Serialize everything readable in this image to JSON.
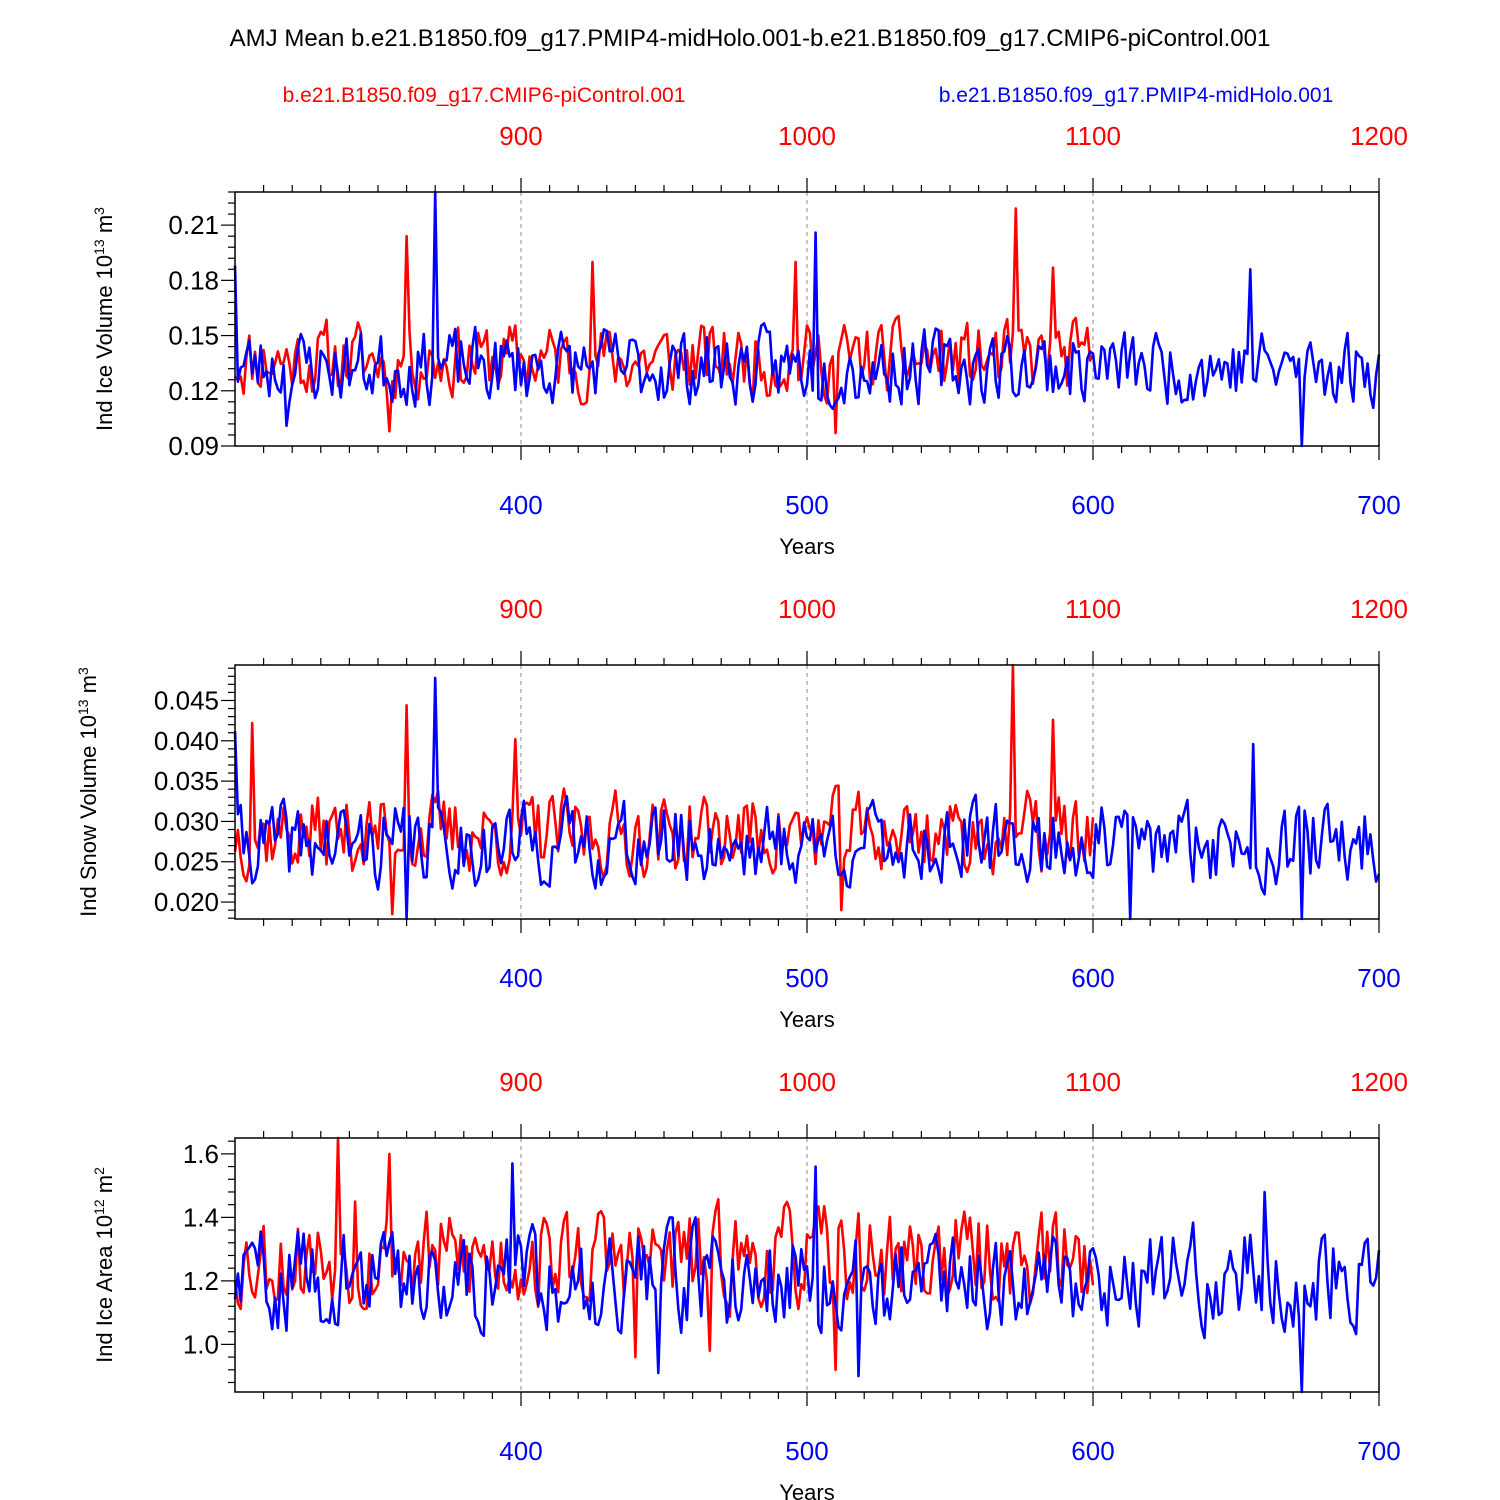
{
  "title": "AMJ Mean b.e21.B1850.f09_g17.PMIP4-midHolo.001-b.e21.B1850.f09_g17.CMIP6-piControl.001",
  "legend": {
    "red_label": "b.e21.B1850.f09_g17.CMIP6-piControl.001",
    "blue_label": "b.e21.B1850.f09_g17.PMIP4-midHolo.001"
  },
  "colors": {
    "red": "#ff0000",
    "blue": "#0000ff",
    "axis": "#000000"
  },
  "chart_data": [
    {
      "type": "line",
      "ylabel": "Ind Ice Volume 10",
      "yexp": "13",
      "yunit": " m",
      "yunit_exp": "3",
      "xlabel": "Years",
      "ylim": [
        0.09,
        0.228
      ],
      "yticks": [
        "0.09",
        "0.12",
        "0.15",
        "0.18",
        "0.21"
      ],
      "bottom_axis": {
        "range": [
          300,
          700
        ],
        "ticks": [
          "400",
          "500",
          "600",
          "700"
        ]
      },
      "top_axis": {
        "range": [
          800,
          1200
        ],
        "ticks": [
          "900",
          "1000",
          "1100",
          "1200"
        ]
      },
      "series": [
        {
          "name": "b.e21.B1850.f09_g17.CMIP6-piControl.001",
          "color": "red",
          "x_start": 800,
          "x_end": 1100,
          "base": 0.137,
          "amp": 0.018,
          "seed": 11,
          "spikes": [
            [
              860,
              0.204
            ],
            [
              925,
              0.19
            ],
            [
              996,
              0.19
            ],
            [
              1073,
              0.219
            ],
            [
              1086,
              0.187
            ],
            [
              854,
              0.098
            ],
            [
              1010,
              0.097
            ]
          ]
        },
        {
          "name": "b.e21.B1850.f09_g17.PMIP4-midHolo.001",
          "color": "blue",
          "x_start": 300,
          "x_end": 700,
          "base": 0.133,
          "amp": 0.018,
          "seed": 23,
          "spikes": [
            [
              370,
              0.228
            ],
            [
              503,
              0.206
            ],
            [
              655,
              0.186
            ],
            [
              300,
              0.188
            ],
            [
              673,
              0.09
            ],
            [
              318,
              0.101
            ]
          ]
        }
      ]
    },
    {
      "type": "line",
      "ylabel": "Ind Snow Volume 10",
      "yexp": "13",
      "yunit": " m",
      "yunit_exp": "3",
      "xlabel": "Years",
      "ylim": [
        0.0179,
        0.0494
      ],
      "yticks": [
        "0.020",
        "0.025",
        "0.030",
        "0.035",
        "0.040",
        "0.045"
      ],
      "bottom_axis": {
        "range": [
          300,
          700
        ],
        "ticks": [
          "400",
          "500",
          "600",
          "700"
        ]
      },
      "top_axis": {
        "range": [
          800,
          1200
        ],
        "ticks": [
          "900",
          "1000",
          "1100",
          "1200"
        ]
      },
      "series": [
        {
          "name": "b.e21.B1850.f09_g17.CMIP6-piControl.001",
          "color": "red",
          "x_start": 800,
          "x_end": 1100,
          "base": 0.0285,
          "amp": 0.0045,
          "seed": 37,
          "spikes": [
            [
              806,
              0.0422
            ],
            [
              860,
              0.0444
            ],
            [
              898,
              0.0402
            ],
            [
              1072,
              0.0494
            ],
            [
              1086,
              0.0426
            ],
            [
              855,
              0.0185
            ],
            [
              1012,
              0.019
            ]
          ]
        },
        {
          "name": "b.e21.B1850.f09_g17.PMIP4-midHolo.001",
          "color": "blue",
          "x_start": 300,
          "x_end": 700,
          "base": 0.0272,
          "amp": 0.0045,
          "seed": 41,
          "spikes": [
            [
              300,
              0.0412
            ],
            [
              370,
              0.0478
            ],
            [
              656,
              0.0396
            ],
            [
              613,
              0.0179
            ],
            [
              360,
              0.0179
            ],
            [
              673,
              0.0179
            ]
          ]
        }
      ]
    },
    {
      "type": "line",
      "ylabel": "Ind Ice Area 10",
      "yexp": "12",
      "yunit": " m",
      "yunit_exp": "2",
      "xlabel": "Years",
      "ylim": [
        0.85,
        1.65
      ],
      "yticks": [
        "1.0",
        "1.2",
        "1.4",
        "1.6"
      ],
      "bottom_axis": {
        "range": [
          300,
          700
        ],
        "ticks": [
          "400",
          "500",
          "600",
          "700"
        ]
      },
      "top_axis": {
        "range": [
          800,
          1200
        ],
        "ticks": [
          "900",
          "1000",
          "1100",
          "1200"
        ]
      },
      "series": [
        {
          "name": "b.e21.B1850.f09_g17.CMIP6-piControl.001",
          "color": "red",
          "x_start": 800,
          "x_end": 1100,
          "base": 1.27,
          "amp": 0.14,
          "seed": 53,
          "spikes": [
            [
              836,
              1.65
            ],
            [
              854,
              1.6
            ],
            [
              842,
              1.45
            ],
            [
              940,
              0.96
            ],
            [
              1010,
              0.92
            ],
            [
              966,
              0.98
            ]
          ]
        },
        {
          "name": "b.e21.B1850.f09_g17.PMIP4-midHolo.001",
          "color": "blue",
          "x_start": 300,
          "x_end": 700,
          "base": 1.21,
          "amp": 0.14,
          "seed": 59,
          "spikes": [
            [
              397,
              1.57
            ],
            [
              503,
              1.56
            ],
            [
              660,
              1.48
            ],
            [
              448,
              0.91
            ],
            [
              518,
              0.9
            ],
            [
              673,
              0.85
            ]
          ]
        }
      ]
    }
  ]
}
